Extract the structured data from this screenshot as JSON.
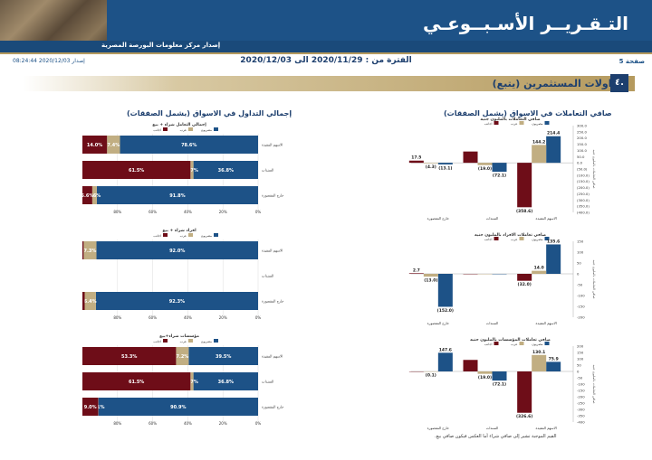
{
  "header": {
    "title": "التـقـريــر الأسـبــوعـي",
    "subtitle": "إصدار مركز معلومات البورصة المصرية"
  },
  "page_number": "صفحة 5",
  "period": "الفترة من : 2020/11/29 الى 2020/12/03",
  "release": "إصدار 2020/12/03 08:24:44",
  "section": {
    "number": "٤.",
    "title": "تداولات المستثمرين (يتبع)"
  },
  "panel_titles": {
    "right": "صافي التعاملات في الاسواق (يشمل الصفقات)",
    "left": "إجمالي التداول في الاسواق (يشمل الصفقات)"
  },
  "footnote": "القيم الموجبة تشير إلى صافي شراء أما العكس فيكون صافي بيع.",
  "colors": {
    "egyptians": "#1d5287",
    "arabs": "#c1ae82",
    "foreigners": "#6e0d18",
    "header": "#1d5287",
    "gold": "#b59a5e"
  },
  "chart_data": [
    {
      "type": "bar",
      "title": "صافي التعاملات بالمليون جنيه",
      "categories": [
        "الاسهم المقيدة",
        "السندات",
        "خارج المقصورة"
      ],
      "series": [
        {
          "name": "مصريون",
          "values": [
            214.4,
            -72.1,
            -13.1
          ]
        },
        {
          "name": "عرب",
          "values": [
            144.2,
            -19.0,
            -4.3
          ]
        },
        {
          "name": "اجانب",
          "values": [
            -358.6,
            91.1,
            17.5
          ]
        }
      ],
      "ylim": [
        -400,
        300
      ],
      "ticks": [
        "300.0",
        "250.0",
        "200.0",
        "150.0",
        "100.0",
        "50.0",
        "0.0",
        "(50.0)",
        "(100.0)",
        "(150.0)",
        "(200.0)",
        "(250.0)",
        "(300.0)",
        "(350.0)",
        "(400.0)"
      ],
      "labels": [
        "214.4",
        "144.2",
        "(358.6)",
        "(72.1)",
        "(19.0)",
        "",
        "(13.1)",
        "(4.3)",
        "17.5"
      ],
      "ylabel": "صافي التعاملات بالمليون جنيه"
    },
    {
      "type": "bar",
      "title": "صافي تعاملات الافراد بالمليون جنيه",
      "categories": [
        "الاسهم المقيدة",
        "السندات",
        "خارج المقصورة"
      ],
      "series": [
        {
          "name": "مصريون",
          "values": [
            135.6,
            0,
            -152.0
          ]
        },
        {
          "name": "عرب",
          "values": [
            14.0,
            0,
            -13.0
          ]
        },
        {
          "name": "اجانب",
          "values": [
            -32.0,
            0,
            2.7
          ]
        }
      ],
      "ylim": [
        -200,
        150
      ],
      "ticks": [
        "150",
        "100",
        "50",
        "0",
        "-50",
        "-100",
        "-150",
        "-200"
      ],
      "labels": [
        "135.6",
        "14.0",
        "(32.0)",
        "",
        "",
        "",
        "(152.0)",
        "(13.0)",
        "2.7"
      ],
      "ylabel": "صافي التعاملات بالمليون جنيه"
    },
    {
      "type": "bar",
      "title": "صافي تعاملات المؤسسات بالمليون جنيه",
      "categories": [
        "الاسهم المقيدة",
        "السندات",
        "خارج المقصورة"
      ],
      "series": [
        {
          "name": "مصريون",
          "values": [
            75.9,
            -72.1,
            147.6
          ]
        },
        {
          "name": "عرب",
          "values": [
            130.1,
            -19.0,
            -0.1
          ]
        },
        {
          "name": "اجانب",
          "values": [
            -326.6,
            91.1,
            0
          ]
        }
      ],
      "ylim": [
        -400,
        200
      ],
      "ticks": [
        "200",
        "150",
        "100",
        "50",
        "0",
        "-50",
        "-100",
        "-150",
        "-200",
        "-250",
        "-300",
        "-350",
        "-400"
      ],
      "labels": [
        "75.9",
        "130.1",
        "(326.6)",
        "(72.1)",
        "(19.0)",
        "",
        "147.6",
        "(0.1)",
        ""
      ],
      "ylabel": "صافي التعاملات بالمليون جنيه"
    },
    {
      "type": "bar",
      "title": "إجمالي التعامل شراء + بيع",
      "orientation": "horizontal",
      "stacked": true,
      "categories": [
        "الاسهم المقيدة",
        "السندات",
        "خارج المقصورة"
      ],
      "series": [
        {
          "name": "مصريون",
          "values": [
            78.6,
            36.8,
            91.8
          ]
        },
        {
          "name": "عرب",
          "values": [
            7.4,
            1.7,
            2.6
          ]
        },
        {
          "name": "اجانب",
          "values": [
            14.0,
            61.5,
            5.6
          ]
        }
      ],
      "labels": [
        [
          "78.6%",
          "7.4%",
          "14.0%"
        ],
        [
          "36.8%",
          "1.7%",
          "61.5%"
        ],
        [
          "91.8%",
          "2.6%",
          "5.6%"
        ]
      ],
      "ticks": [
        "0%",
        "20%",
        "40%",
        "60%",
        "80%"
      ]
    },
    {
      "type": "bar",
      "title": "افراد شراء + بيع",
      "orientation": "horizontal",
      "stacked": true,
      "categories": [
        "الاسهم المقيدة",
        "السندات",
        "خارج المقصورة"
      ],
      "series": [
        {
          "name": "مصريون",
          "values": [
            92.0,
            0,
            92.3
          ]
        },
        {
          "name": "عرب",
          "values": [
            7.3,
            0,
            6.4
          ]
        },
        {
          "name": "اجانب",
          "values": [
            0.7,
            0,
            1.3
          ]
        }
      ],
      "labels": [
        [
          "92.0%",
          "7.3%",
          ""
        ],
        [
          "",
          "",
          ""
        ],
        [
          "92.3%",
          "6.4%",
          ""
        ]
      ],
      "ticks": [
        "0%",
        "20%",
        "40%",
        "60%",
        "80%"
      ]
    },
    {
      "type": "bar",
      "title": "مؤسسات شراء+بيع",
      "orientation": "horizontal",
      "stacked": true,
      "categories": [
        "الاسهم المقيدة",
        "السندات",
        "خارج المقصورة"
      ],
      "series": [
        {
          "name": "مصريون",
          "values": [
            39.5,
            36.8,
            90.9
          ]
        },
        {
          "name": "عرب",
          "values": [
            7.2,
            1.7,
            0.1
          ]
        },
        {
          "name": "اجانب",
          "values": [
            53.3,
            61.5,
            9.0
          ]
        }
      ],
      "labels": [
        [
          "39.5%",
          "7.2%",
          "53.3%"
        ],
        [
          "36.8%",
          "1.7%",
          "61.5%"
        ],
        [
          "90.9%",
          "0.1%",
          "9.0%"
        ]
      ],
      "ticks": [
        "0%",
        "20%",
        "40%",
        "60%",
        "80%"
      ]
    }
  ]
}
